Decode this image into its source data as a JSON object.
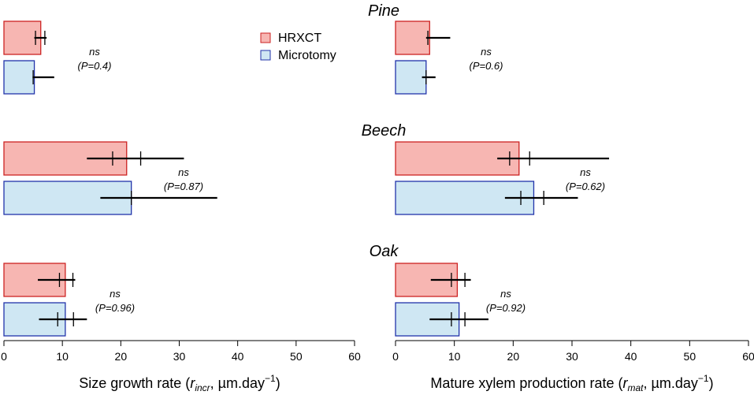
{
  "chart_data": {
    "type": "bar",
    "orientation": "horizontal",
    "colors": {
      "HRXCT_fill": "#f7b6b2",
      "HRXCT_stroke": "#cc2222",
      "Microtomy_fill": "#cfe7f3",
      "Microtomy_stroke": "#2233aa",
      "errorbar": "#000000"
    },
    "legend": {
      "position": "top-center",
      "entries": [
        {
          "name": "HRXCT",
          "key": "HRXCT"
        },
        {
          "name": "Microtomy",
          "key": "Microtomy"
        }
      ]
    },
    "species": [
      {
        "name": "Pine",
        "key": "Pine"
      },
      {
        "name": "Beech",
        "key": "Beech"
      },
      {
        "name": "Oak",
        "key": "Oak"
      }
    ],
    "xlim": [
      0,
      60
    ],
    "xticks": [
      "0",
      "10",
      "20",
      "30",
      "40",
      "50",
      "60"
    ],
    "panels": [
      {
        "id": "left",
        "xlabel_main": "Size growth rate (",
        "xlabel_var": "r",
        "xlabel_sub": "incr",
        "xlabel_rest": ", µm.day",
        "xlabel_sup": "−1",
        "xlabel_close": ")",
        "groups": [
          {
            "species": "Pine",
            "ns": "ns",
            "p": "(P=0.4)",
            "bars": [
              {
                "method": "HRXCT",
                "value": 6.3,
                "err_low": 5.2,
                "err_high": 7.3,
                "ticks": [
                  5.4,
                  7.0
                ]
              },
              {
                "method": "Microtomy",
                "value": 5.2,
                "err_low": 4.9,
                "err_high": 8.6,
                "ticks": [
                  5.0
                ]
              }
            ]
          },
          {
            "species": "Beech",
            "ns": "ns",
            "p": "(P=0.87)",
            "bars": [
              {
                "method": "HRXCT",
                "value": 21.0,
                "err_low": 14.2,
                "err_high": 30.8,
                "ticks": [
                  18.6,
                  23.4
                ]
              },
              {
                "method": "Microtomy",
                "value": 21.8,
                "err_low": 16.5,
                "err_high": 36.5,
                "ticks": [
                  21.8
                ]
              }
            ]
          },
          {
            "species": "Oak",
            "ns": "ns",
            "p": "(P=0.96)",
            "bars": [
              {
                "method": "HRXCT",
                "value": 10.5,
                "err_low": 5.8,
                "err_high": 12.2,
                "ticks": [
                  9.5,
                  11.8
                ]
              },
              {
                "method": "Microtomy",
                "value": 10.5,
                "err_low": 6.0,
                "err_high": 14.2,
                "ticks": [
                  9.2,
                  11.9
                ]
              }
            ]
          }
        ]
      },
      {
        "id": "right",
        "xlabel_main": "Mature xylem production rate (",
        "xlabel_var": "r",
        "xlabel_sub": "mat",
        "xlabel_rest": ", µm.day",
        "xlabel_sup": "−1",
        "xlabel_close": ")",
        "groups": [
          {
            "species": "Pine",
            "ns": "ns",
            "p": "(P=0.6)",
            "bars": [
              {
                "method": "HRXCT",
                "value": 5.8,
                "err_low": 5.2,
                "err_high": 9.3,
                "ticks": [
                  5.5
                ]
              },
              {
                "method": "Microtomy",
                "value": 5.2,
                "err_low": 4.5,
                "err_high": 6.8,
                "ticks": [
                  5.2
                ]
              }
            ]
          },
          {
            "species": "Beech",
            "ns": "ns",
            "p": "(P=0.62)",
            "bars": [
              {
                "method": "HRXCT",
                "value": 21.0,
                "err_low": 17.3,
                "err_high": 36.3,
                "ticks": [
                  19.4,
                  22.8
                ]
              },
              {
                "method": "Microtomy",
                "value": 23.5,
                "err_low": 18.6,
                "err_high": 31.0,
                "ticks": [
                  21.3,
                  25.2
                ]
              }
            ]
          },
          {
            "species": "Oak",
            "ns": "ns",
            "p": "(P=0.92)",
            "bars": [
              {
                "method": "HRXCT",
                "value": 10.5,
                "err_low": 6.0,
                "err_high": 12.8,
                "ticks": [
                  9.5,
                  11.8
                ]
              },
              {
                "method": "Microtomy",
                "value": 10.8,
                "err_low": 5.8,
                "err_high": 15.8,
                "ticks": [
                  9.5,
                  11.8
                ]
              }
            ]
          }
        ]
      }
    ]
  }
}
